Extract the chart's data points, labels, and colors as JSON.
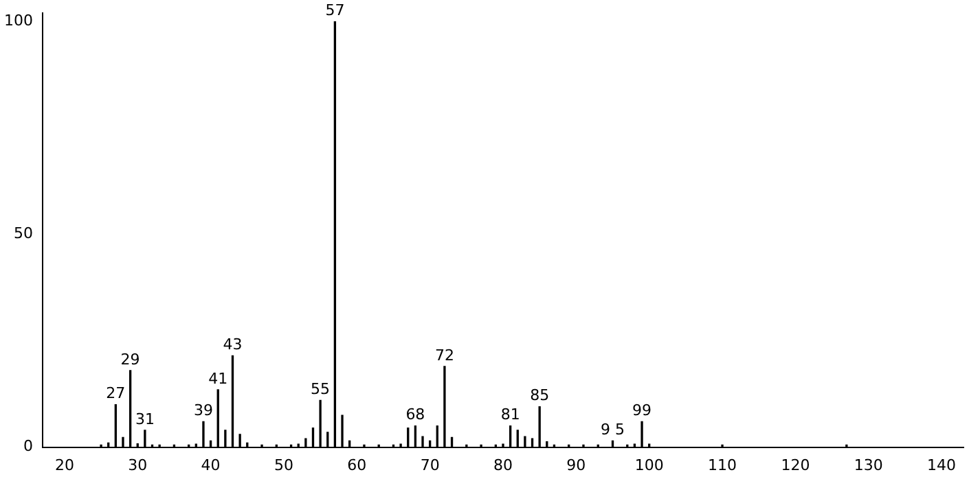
{
  "chart_data": {
    "type": "bar",
    "x": [
      25,
      26,
      27,
      28,
      29,
      30,
      31,
      32,
      33,
      35,
      37,
      38,
      39,
      40,
      41,
      42,
      43,
      44,
      45,
      47,
      49,
      51,
      52,
      53,
      54,
      55,
      56,
      57,
      58,
      59,
      61,
      63,
      65,
      66,
      67,
      68,
      69,
      70,
      71,
      72,
      73,
      75,
      77,
      79,
      80,
      81,
      82,
      83,
      84,
      85,
      86,
      87,
      89,
      91,
      93,
      95,
      97,
      98,
      99,
      100,
      110,
      127
    ],
    "values": [
      0.5,
      1,
      10,
      2.3,
      18,
      0.8,
      4,
      0.5,
      0.5,
      0.5,
      0.5,
      0.7,
      6,
      1.5,
      13.5,
      4,
      21.5,
      3,
      1,
      0.5,
      0.5,
      0.5,
      0.7,
      2,
      4.5,
      11,
      3.5,
      100,
      7.5,
      1.5,
      0.5,
      0.5,
      0.5,
      0.7,
      4.5,
      5,
      2.5,
      1.5,
      5,
      19,
      2.3,
      0.5,
      0.5,
      0.5,
      0.7,
      5,
      4,
      2.5,
      2,
      9.5,
      1.3,
      0.5,
      0.5,
      0.5,
      0.5,
      1.5,
      0.5,
      0.7,
      6,
      0.7,
      0.5,
      0.5
    ],
    "annotations": [
      {
        "text": "27",
        "x": 27,
        "y": 10
      },
      {
        "text": "29",
        "x": 29,
        "y": 18
      },
      {
        "text": "31",
        "x": 31,
        "y": 4
      },
      {
        "text": "39",
        "x": 39,
        "y": 6
      },
      {
        "text": "41",
        "x": 41,
        "y": 13.5
      },
      {
        "text": "43",
        "x": 43,
        "y": 21.5
      },
      {
        "text": "55",
        "x": 55,
        "y": 11
      },
      {
        "text": "57",
        "x": 57,
        "y": 100
      },
      {
        "text": "68",
        "x": 68,
        "y": 5
      },
      {
        "text": "72",
        "x": 72,
        "y": 19
      },
      {
        "text": "81",
        "x": 81,
        "y": 5
      },
      {
        "text": "85",
        "x": 85,
        "y": 9.5
      },
      {
        "text": "9 5",
        "x": 95,
        "y": 1.5
      },
      {
        "text": "99",
        "x": 99,
        "y": 6
      }
    ],
    "color": "#000000",
    "xlim": [
      17,
      143
    ],
    "xticks": [
      20,
      30,
      40,
      50,
      60,
      70,
      80,
      90,
      100,
      110,
      120,
      130,
      140
    ],
    "ylim": [
      0,
      102
    ],
    "yticks": [
      0,
      50,
      100
    ],
    "grid": false,
    "legend": false
  }
}
